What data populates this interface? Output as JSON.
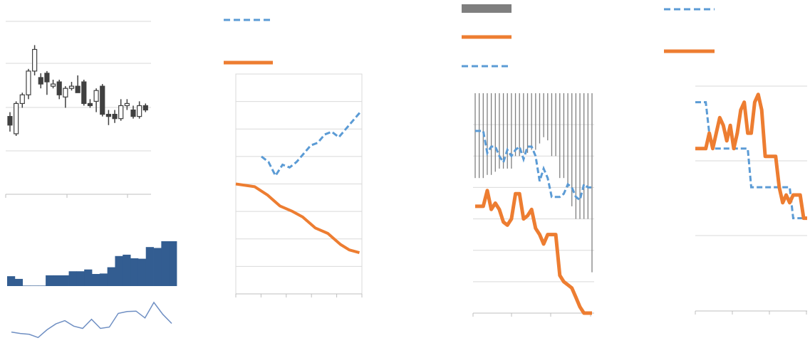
{
  "palette": {
    "orange": "#ED7D31",
    "blue_dashed": "#5B9BD5",
    "candle": "#404040",
    "bar_fill": "#335D91",
    "thin_line": "#6F8FC3",
    "grid": "#D9D9D9",
    "axis": "#BFBFBF",
    "gray_bar": "#7F7F7F"
  },
  "chart_data": [
    {
      "type": "candlestick",
      "title": "",
      "xlabel": "",
      "ylabel": "",
      "grid": true,
      "ylim": [
        0,
        4
      ],
      "candles": [
        {
          "o": 1.8,
          "c": 1.6,
          "h": 1.9,
          "l": 1.45
        },
        {
          "o": 1.4,
          "c": 2.1,
          "h": 2.15,
          "l": 1.35
        },
        {
          "o": 2.1,
          "c": 2.3,
          "h": 2.35,
          "l": 2.0
        },
        {
          "o": 2.3,
          "c": 2.85,
          "h": 2.9,
          "l": 2.2
        },
        {
          "o": 2.85,
          "c": 3.35,
          "h": 3.45,
          "l": 2.75
        },
        {
          "o": 2.7,
          "c": 2.55,
          "h": 2.8,
          "l": 2.45
        },
        {
          "o": 2.8,
          "c": 2.6,
          "h": 2.85,
          "l": 2.3
        },
        {
          "o": 2.5,
          "c": 2.55,
          "h": 2.65,
          "l": 2.45
        },
        {
          "o": 2.6,
          "c": 2.3,
          "h": 2.65,
          "l": 2.2
        },
        {
          "o": 2.25,
          "c": 2.45,
          "h": 2.5,
          "l": 2.0
        },
        {
          "o": 2.45,
          "c": 2.5,
          "h": 2.6,
          "l": 2.4
        },
        {
          "o": 2.5,
          "c": 2.35,
          "h": 2.75,
          "l": 2.35
        },
        {
          "o": 2.6,
          "c": 2.1,
          "h": 2.65,
          "l": 2.05
        },
        {
          "o": 2.1,
          "c": 2.05,
          "h": 2.2,
          "l": 2.0
        },
        {
          "o": 2.15,
          "c": 2.4,
          "h": 2.45,
          "l": 1.9
        },
        {
          "o": 2.5,
          "c": 1.85,
          "h": 2.55,
          "l": 1.8
        },
        {
          "o": 1.85,
          "c": 1.8,
          "h": 1.95,
          "l": 1.6
        },
        {
          "o": 1.85,
          "c": 1.75,
          "h": 1.95,
          "l": 1.65
        },
        {
          "o": 1.75,
          "c": 2.05,
          "h": 2.2,
          "l": 1.7
        },
        {
          "o": 2.05,
          "c": 2.1,
          "h": 2.2,
          "l": 1.95
        },
        {
          "o": 1.95,
          "c": 1.8,
          "h": 2.05,
          "l": 1.75
        },
        {
          "o": 1.8,
          "c": 2.05,
          "h": 2.15,
          "l": 1.75
        },
        {
          "o": 2.05,
          "c": 1.95,
          "h": 2.1,
          "l": 1.9
        }
      ]
    },
    {
      "type": "bar",
      "title": "",
      "grid": false,
      "ylim": [
        0,
        10
      ],
      "values": [
        2.2,
        1.6,
        0.1,
        0.1,
        0.1,
        2.4,
        2.4,
        2.4,
        3.3,
        3.3,
        3.7,
        2.7,
        2.8,
        4.2,
        6.7,
        7.0,
        6.2,
        6.1,
        8.7,
        8.5,
        10.0,
        10.0
      ]
    },
    {
      "type": "line",
      "title": "",
      "grid": false,
      "ylim": [
        0,
        10
      ],
      "values": [
        2.4,
        2.1,
        1.9,
        1.2,
        2.9,
        4.2,
        4.9,
        3.7,
        3.2,
        5.2,
        3.2,
        3.5,
        6.5,
        6.9,
        7.0,
        5.5,
        8.9,
        6.3,
        4.3
      ]
    },
    {
      "type": "line",
      "title": "",
      "grid": true,
      "ylim": [
        0,
        8
      ],
      "legend": "top-left",
      "series": [
        {
          "style": "dashed",
          "x": [
            0,
            0.7,
            1.4,
            2.1,
            2.8,
            3.5,
            4.2,
            4.9,
            5.6,
            6.3,
            7.0,
            7.7,
            8.4,
            9.1,
            9.8
          ],
          "values": [
            5.0,
            4.8,
            4.3,
            4.7,
            4.6,
            4.8,
            5.1,
            5.4,
            5.5,
            5.8,
            5.9,
            5.7,
            6.0,
            6.3,
            6.6
          ]
        },
        {
          "style": "solid",
          "x": [
            0,
            1.5,
            2.5,
            3.5,
            4.5,
            5.3,
            6.3,
            7.3,
            8.3,
            9.0,
            9.8
          ],
          "values": [
            4.0,
            3.9,
            3.6,
            3.2,
            3.0,
            2.8,
            2.4,
            2.2,
            1.8,
            1.6,
            1.5
          ]
        }
      ]
    },
    {
      "type": "line",
      "title": "",
      "grid": true,
      "ylim": [
        0,
        7
      ],
      "legend": "top-left",
      "series": [
        {
          "style": "bars",
          "high": [
            7.0,
            7.0,
            7.0,
            7.0,
            7.0,
            7.0,
            7.0,
            7.0,
            7.0,
            7.0,
            7.0,
            7.0,
            7.0,
            7.0,
            7.0,
            7.0,
            7.0,
            7.0,
            7.0,
            7.0,
            7.0,
            7.0,
            7.0,
            7.0,
            7.0,
            7.0,
            7.0,
            7.0,
            7.0,
            7.0
          ],
          "low": [
            4.3,
            4.3,
            4.3,
            4.4,
            4.4,
            4.5,
            4.6,
            4.6,
            4.6,
            4.6,
            5.0,
            5.0,
            5.1,
            5.1,
            5.2,
            5.2,
            5.4,
            5.6,
            5.5,
            5.0,
            5.0,
            4.3,
            4.3,
            4.0,
            3.4,
            3.0,
            3.0,
            3.0,
            3.0,
            1.3
          ]
        },
        {
          "style": "dashed",
          "values": [
            5.8,
            5.8,
            5.8,
            5.1,
            5.3,
            5.3,
            5.0,
            4.8,
            5.2,
            5.0,
            5.2,
            5.3,
            4.9,
            5.3,
            5.3,
            5.0,
            4.2,
            4.6,
            4.3,
            3.7,
            3.7,
            3.7,
            3.8,
            4.1,
            4.0,
            3.7,
            3.6,
            4.1,
            4.0,
            4.0
          ]
        },
        {
          "style": "solid",
          "values": [
            3.4,
            3.4,
            3.4,
            3.9,
            3.3,
            3.5,
            3.3,
            2.9,
            2.8,
            3.0,
            3.8,
            3.8,
            3.0,
            3.1,
            3.3,
            2.7,
            2.5,
            2.2,
            2.5,
            2.5,
            2.5,
            1.2,
            1.0,
            0.9,
            0.8,
            0.5,
            0.2,
            0.0,
            0.0,
            0.0
          ]
        }
      ]
    },
    {
      "type": "line",
      "title": "",
      "grid": true,
      "ylim": [
        0,
        3
      ],
      "legend": "top-left",
      "series": [
        {
          "style": "dashed",
          "values": [
            2.7,
            2.7,
            2.7,
            2.7,
            2.3,
            2.1,
            2.1,
            2.1,
            2.1,
            2.1,
            2.1,
            2.1,
            2.1,
            2.1,
            2.1,
            2.1,
            1.6,
            1.6,
            1.6,
            1.6,
            1.6,
            1.6,
            1.6,
            1.6,
            1.6,
            1.6,
            1.6,
            1.6,
            1.2,
            1.2,
            1.2,
            1.2,
            1.2
          ]
        },
        {
          "style": "solid",
          "values": [
            2.1,
            2.1,
            2.1,
            2.1,
            2.3,
            2.1,
            2.3,
            2.5,
            2.4,
            2.2,
            2.4,
            2.1,
            2.3,
            2.6,
            2.7,
            2.3,
            2.3,
            2.7,
            2.8,
            2.6,
            2.0,
            2.0,
            2.0,
            2.0,
            1.6,
            1.4,
            1.5,
            1.4,
            1.5,
            1.5,
            1.5,
            1.2,
            1.2
          ]
        }
      ]
    }
  ]
}
